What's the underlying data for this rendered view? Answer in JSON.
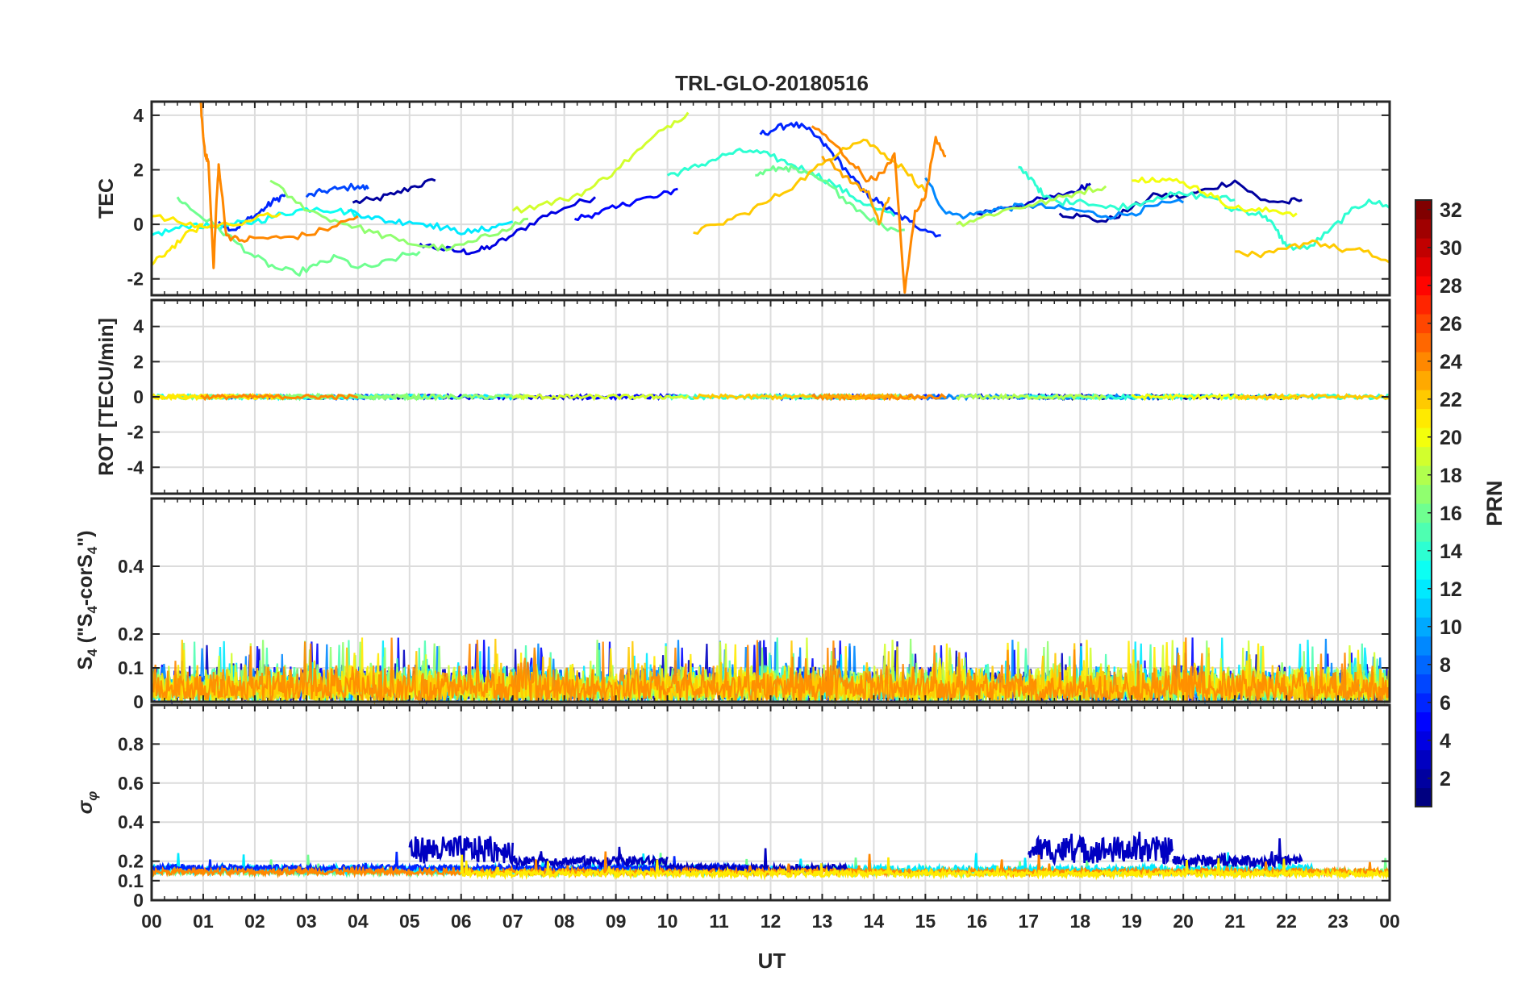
{
  "chart_data": {
    "type": "line",
    "title": "TRL-GLO-20180516",
    "xlabel": "UT",
    "x_ticks": [
      "00",
      "01",
      "02",
      "03",
      "04",
      "05",
      "06",
      "07",
      "08",
      "09",
      "10",
      "11",
      "12",
      "13",
      "14",
      "15",
      "16",
      "17",
      "18",
      "19",
      "20",
      "21",
      "22",
      "23",
      "00"
    ],
    "xlim": [
      0,
      24
    ],
    "grid": true,
    "panels": [
      {
        "id": "tec",
        "ylabel": "TEC",
        "ylim": [
          -2.6,
          4.5
        ],
        "yticks": [
          -2,
          0,
          2,
          4
        ],
        "ytick_labels": [
          "-2",
          "0",
          "2",
          "4"
        ],
        "series": [
          {
            "prn": 2,
            "x": [
              3.9,
              4.3,
              4.7,
              5.1,
              5.5
            ],
            "y": [
              0.8,
              0.9,
              1.1,
              1.4,
              1.6
            ]
          },
          {
            "prn": 4,
            "x": [
              5.2,
              5.6,
              6.0,
              6.3,
              6.6,
              7.0,
              7.5,
              8.0,
              8.6
            ],
            "y": [
              -0.7,
              -0.9,
              -1.0,
              -1.0,
              -0.8,
              -0.4,
              0.2,
              0.6,
              1.0
            ]
          },
          {
            "prn": 6,
            "x": [
              1.3,
              1.6,
              1.8,
              2.0,
              2.2,
              2.4,
              2.6
            ],
            "y": [
              0.1,
              -0.2,
              0.1,
              0.3,
              0.6,
              0.9,
              1.1
            ]
          },
          {
            "prn": 7,
            "x": [
              3.0,
              3.3,
              3.6,
              4.0,
              4.2
            ],
            "y": [
              1.0,
              1.2,
              1.3,
              1.4,
              1.3
            ]
          },
          {
            "prn": 5,
            "x": [
              8.2,
              8.6,
              9.0,
              9.4,
              9.8,
              10.2
            ],
            "y": [
              0.2,
              0.4,
              0.6,
              0.9,
              1.0,
              1.3
            ]
          },
          {
            "prn": 3,
            "x": [
              16.0,
              16.5,
              17.0,
              17.5,
              18.0,
              18.2
            ],
            "y": [
              0.4,
              0.6,
              0.8,
              1.0,
              1.3,
              1.5
            ]
          },
          {
            "prn": 2,
            "x": [
              17.6,
              18.0,
              18.5,
              19.0,
              19.5,
              20.0,
              20.5,
              21.0,
              21.5,
              22.0,
              22.3
            ],
            "y": [
              0.4,
              0.3,
              0.1,
              0.6,
              1.1,
              1.0,
              1.3,
              1.6,
              0.9,
              0.8,
              0.9
            ]
          },
          {
            "prn": 6,
            "x": [
              11.8,
              12.1,
              12.4,
              12.7,
              13.0,
              13.2,
              13.5,
              13.8,
              14.1,
              14.4,
              14.7,
              15.0,
              15.3
            ],
            "y": [
              3.3,
              3.5,
              3.7,
              3.5,
              3.0,
              2.6,
              1.9,
              1.2,
              0.8,
              0.4,
              0.1,
              -0.2,
              -0.4
            ]
          },
          {
            "prn": 9,
            "x": [
              15.0,
              15.4,
              15.8,
              16.2,
              16.6,
              17.0,
              17.5,
              18.0,
              18.5,
              19.0,
              19.5,
              20.0
            ],
            "y": [
              1.7,
              0.4,
              0.3,
              0.5,
              0.6,
              0.7,
              0.6,
              0.5,
              0.3,
              0.4,
              0.7,
              0.8
            ]
          },
          {
            "prn": 13,
            "x": [
              0.0,
              0.4,
              0.8,
              1.2,
              1.6,
              2.0,
              2.4,
              2.8,
              3.2,
              3.6,
              4.0
            ],
            "y": [
              -0.4,
              -0.2,
              0.0,
              -0.1,
              0.0,
              0.1,
              0.3,
              0.5,
              0.6,
              0.5,
              0.4
            ]
          },
          {
            "prn": 12,
            "x": [
              3.8,
              4.2,
              4.6,
              5.0,
              5.4,
              5.8,
              6.2,
              6.6,
              7.0
            ],
            "y": [
              0.5,
              0.3,
              0.1,
              0.1,
              0.0,
              -0.2,
              -0.3,
              -0.1,
              0.1
            ]
          },
          {
            "prn": 14,
            "x": [
              10.0,
              10.4,
              10.8,
              11.2,
              11.6,
              12.0,
              12.4,
              12.8,
              13.2,
              13.6,
              14.0,
              14.4
            ],
            "y": [
              1.8,
              2.0,
              2.3,
              2.6,
              2.7,
              2.5,
              2.2,
              1.9,
              1.5,
              1.0,
              0.6,
              0.3
            ]
          },
          {
            "prn": 14,
            "x": [
              16.8,
              17.1,
              17.3,
              17.6,
              18.0,
              18.5,
              19.0,
              19.5,
              20.0,
              20.5,
              21.0
            ],
            "y": [
              2.1,
              1.6,
              1.0,
              0.8,
              0.9,
              0.6,
              0.7,
              1.0,
              1.1,
              1.0,
              0.9
            ]
          },
          {
            "prn": 14,
            "x": [
              20.8,
              21.2,
              21.6,
              21.8,
              22.0,
              22.4,
              22.8,
              23.2,
              23.6,
              24.0
            ],
            "y": [
              0.6,
              0.5,
              0.3,
              -0.2,
              -0.8,
              -0.9,
              -0.3,
              0.4,
              0.9,
              0.6
            ]
          },
          {
            "prn": 16,
            "x": [
              0.5,
              0.8,
              1.2,
              1.6,
              2.0,
              2.4,
              2.8,
              3.2,
              3.6,
              4.0,
              4.4,
              4.8,
              5.2
            ],
            "y": [
              1.0,
              0.5,
              0.0,
              -0.6,
              -1.2,
              -1.6,
              -1.8,
              -1.5,
              -1.2,
              -1.6,
              -1.5,
              -1.2,
              -1.0
            ]
          },
          {
            "prn": 17,
            "x": [
              2.3,
              2.8,
              3.3,
              3.8,
              4.3,
              4.8,
              5.3,
              5.8,
              6.3,
              6.8,
              7.3
            ],
            "y": [
              1.6,
              0.8,
              0.3,
              0.0,
              -0.3,
              -0.6,
              -0.8,
              -0.9,
              -0.6,
              -0.2,
              0.2
            ]
          },
          {
            "prn": 16,
            "x": [
              11.7,
              12.0,
              12.3,
              12.6,
              13.0,
              13.4,
              13.8,
              14.2,
              14.6
            ],
            "y": [
              1.8,
              2.0,
              2.1,
              1.9,
              1.6,
              1.0,
              0.4,
              -0.1,
              -0.2
            ]
          },
          {
            "prn": 18,
            "x": [
              15.6,
              16.0,
              16.5,
              17.0,
              17.5,
              18.0,
              18.5
            ],
            "y": [
              0.0,
              0.2,
              0.5,
              0.7,
              0.9,
              1.2,
              1.4
            ]
          },
          {
            "prn": 19,
            "x": [
              7.0,
              7.5,
              8.0,
              8.5,
              9.0,
              9.5,
              10.0,
              10.4
            ],
            "y": [
              0.5,
              0.7,
              0.9,
              1.3,
              2.0,
              2.8,
              3.6,
              4.1
            ]
          },
          {
            "prn": 20,
            "x": [
              19.0,
              19.4,
              19.8,
              20.2,
              20.6,
              21.0,
              21.4,
              21.8,
              22.2
            ],
            "y": [
              1.6,
              1.7,
              1.6,
              1.4,
              1.0,
              0.6,
              0.5,
              0.5,
              0.4
            ]
          },
          {
            "prn": 21,
            "x": [
              0.0,
              0.5,
              1.0,
              1.5,
              2.0,
              2.5
            ],
            "y": [
              0.3,
              0.1,
              -0.1,
              0.0,
              0.2,
              0.4
            ]
          },
          {
            "prn": 22,
            "x": [
              10.5,
              11.0,
              11.5,
              12.0,
              12.5,
              13.0,
              13.4,
              13.8,
              14.2,
              14.6,
              15.0
            ],
            "y": [
              -0.3,
              0.0,
              0.4,
              0.9,
              1.5,
              2.2,
              2.8,
              3.1,
              2.6,
              2.0,
              1.2
            ]
          },
          {
            "prn": 22,
            "x": [
              21.0,
              21.5,
              22.0,
              22.5,
              23.0,
              23.5,
              24.0
            ],
            "y": [
              -1.0,
              -1.2,
              -0.9,
              -0.6,
              -0.9,
              -1.0,
              -1.4
            ]
          },
          {
            "prn": 21,
            "x": [
              0.0,
              0.3,
              0.6,
              1.0
            ],
            "y": [
              -1.5,
              -1.0,
              -0.5,
              0.0
            ]
          },
          {
            "prn": 24,
            "x": [
              0.95,
              1.0,
              1.05,
              1.1,
              1.2,
              1.25,
              1.3,
              1.45,
              1.7,
              2.0,
              2.5,
              3.0,
              3.5,
              4.0
            ],
            "y": [
              4.5,
              3.2,
              2.5,
              2.3,
              -1.6,
              0.5,
              2.2,
              -0.4,
              -0.6,
              -0.5,
              -0.5,
              -0.4,
              -0.1,
              0.3
            ]
          },
          {
            "prn": 24,
            "x": [
              12.8,
              13.2,
              13.6,
              13.9,
              14.2,
              14.4,
              14.6,
              14.8,
              15.0,
              15.2,
              15.4
            ],
            "y": [
              3.6,
              3.0,
              2.2,
              1.6,
              1.9,
              2.6,
              -2.5,
              0.5,
              1.0,
              3.2,
              2.5
            ]
          },
          {
            "prn": 23,
            "x": [
              13.0,
              13.3,
              13.6,
              13.9,
              14.1,
              14.3
            ],
            "y": [
              2.5,
              2.0,
              1.5,
              1.2,
              0.0,
              1.0
            ]
          }
        ]
      },
      {
        "id": "rot",
        "ylabel": "ROT [TECU/min]",
        "ylim": [
          -5.5,
          5.5
        ],
        "yticks": [
          -4,
          -2,
          0,
          2,
          4
        ],
        "ytick_labels": [
          "-4",
          "-2",
          "0",
          "2",
          "4"
        ],
        "trace": {
          "baseline": 0,
          "amplitude": 0.12
        }
      },
      {
        "id": "s4",
        "ylabel": "S4 (\"S4-corS4\")",
        "ylim": [
          0,
          0.6
        ],
        "yticks": [
          0,
          0.1,
          0.2,
          0.4
        ],
        "ytick_labels": [
          "0",
          "0.1",
          "0.2",
          "0.4"
        ],
        "trace": {
          "typical_max": 0.12,
          "peak_max": 0.19
        }
      },
      {
        "id": "sigma",
        "ylabel": "σφ",
        "ylim": [
          0,
          1.0
        ],
        "yticks": [
          0,
          0.1,
          0.2,
          0.4,
          0.6,
          0.8
        ],
        "ytick_labels": [
          "0",
          "0.1",
          "0.2",
          "0.4",
          "0.6",
          "0.8"
        ],
        "trace": {
          "baseline": 0.14,
          "peak_max": 0.38
        }
      }
    ],
    "colorbar": {
      "label": "PRN",
      "min": 1,
      "max": 32,
      "ticks": [
        2,
        4,
        6,
        8,
        10,
        12,
        14,
        16,
        18,
        20,
        22,
        24,
        26,
        28,
        30,
        32
      ],
      "colormap": "jet"
    }
  }
}
